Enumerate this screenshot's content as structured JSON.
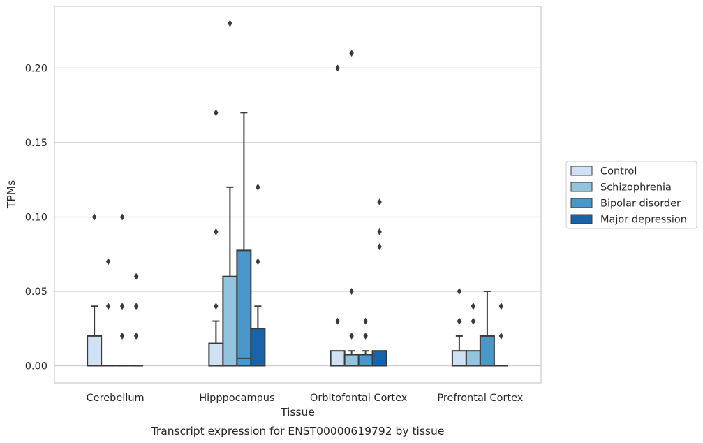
{
  "caption": "Transcript expression for ENST00000619792 by tissue",
  "chart_data": {
    "type": "box",
    "xlabel": "Tissue",
    "ylabel": "TPMs",
    "ylim": [
      -0.0115,
      0.2415
    ],
    "yticks": [
      0.0,
      0.05,
      0.1,
      0.15,
      0.2
    ],
    "ytick_labels": [
      "0.00",
      "0.05",
      "0.10",
      "0.15",
      "0.20"
    ],
    "grid": "horizontal",
    "legend_position": "right",
    "categories": [
      "Cerebellum",
      "Hipppocampus",
      "Orbitofontal Cortex",
      "Prefrontal Cortex"
    ],
    "series": [
      {
        "name": "Control",
        "color": "#cfe1f2",
        "boxes": [
          {
            "q1": 0.0,
            "median": 0.0,
            "q3": 0.02,
            "whisker_low": 0.0,
            "whisker_high": 0.04,
            "outliers": [
              0.1
            ]
          },
          {
            "q1": 0.0,
            "median": 0.0,
            "q3": 0.015,
            "whisker_low": 0.0,
            "whisker_high": 0.03,
            "outliers": [
              0.04,
              0.09,
              0.17
            ]
          },
          {
            "q1": 0.0,
            "median": 0.0,
            "q3": 0.01,
            "whisker_low": 0.0,
            "whisker_high": 0.01,
            "outliers": [
              0.03,
              0.2
            ]
          },
          {
            "q1": 0.0,
            "median": 0.0,
            "q3": 0.01,
            "whisker_low": 0.0,
            "whisker_high": 0.02,
            "outliers": [
              0.03,
              0.03,
              0.05
            ]
          }
        ]
      },
      {
        "name": "Schizophrenia",
        "color": "#93c4de",
        "boxes": [
          {
            "q1": 0.0,
            "median": 0.0,
            "q3": 0.0,
            "whisker_low": 0.0,
            "whisker_high": 0.0,
            "outliers": [
              0.04,
              0.07
            ]
          },
          {
            "q1": 0.0,
            "median": 0.0,
            "q3": 0.06,
            "whisker_low": 0.0,
            "whisker_high": 0.12,
            "outliers": [
              0.23
            ]
          },
          {
            "q1": 0.0,
            "median": 0.0,
            "q3": 0.0075,
            "whisker_low": 0.0,
            "whisker_high": 0.01,
            "outliers": [
              0.02,
              0.05,
              0.21
            ]
          },
          {
            "q1": 0.0,
            "median": 0.0,
            "q3": 0.01,
            "whisker_low": 0.0,
            "whisker_high": 0.01,
            "outliers": [
              0.03,
              0.04,
              0.04
            ]
          }
        ]
      },
      {
        "name": "Bipolar disorder",
        "color": "#4a98c9",
        "boxes": [
          {
            "q1": 0.0,
            "median": 0.0,
            "q3": 0.0,
            "whisker_low": 0.0,
            "whisker_high": 0.0,
            "outliers": [
              0.02,
              0.04,
              0.1
            ]
          },
          {
            "q1": 0.0,
            "median": 0.005,
            "q3": 0.0775,
            "whisker_low": 0.0,
            "whisker_high": 0.17,
            "outliers": []
          },
          {
            "q1": 0.0,
            "median": 0.0,
            "q3": 0.0075,
            "whisker_low": 0.0,
            "whisker_high": 0.01,
            "outliers": [
              0.02,
              0.03
            ]
          },
          {
            "q1": 0.0,
            "median": 0.0,
            "q3": 0.02,
            "whisker_low": 0.0,
            "whisker_high": 0.05,
            "outliers": []
          }
        ]
      },
      {
        "name": "Major depression",
        "color": "#1764ab",
        "boxes": [
          {
            "q1": 0.0,
            "median": 0.0,
            "q3": 0.0,
            "whisker_low": 0.0,
            "whisker_high": 0.0,
            "outliers": [
              0.02,
              0.04,
              0.06
            ]
          },
          {
            "q1": 0.0,
            "median": 0.0,
            "q3": 0.025,
            "whisker_low": 0.0,
            "whisker_high": 0.04,
            "outliers": [
              0.07,
              0.12
            ]
          },
          {
            "q1": 0.0,
            "median": 0.0,
            "q3": 0.01,
            "whisker_low": 0.0,
            "whisker_high": 0.01,
            "outliers": [
              0.08,
              0.09,
              0.11
            ]
          },
          {
            "q1": 0.0,
            "median": 0.0,
            "q3": 0.0,
            "whisker_low": 0.0,
            "whisker_high": 0.0,
            "outliers": [
              0.02,
              0.04,
              0.04
            ]
          }
        ]
      }
    ]
  }
}
